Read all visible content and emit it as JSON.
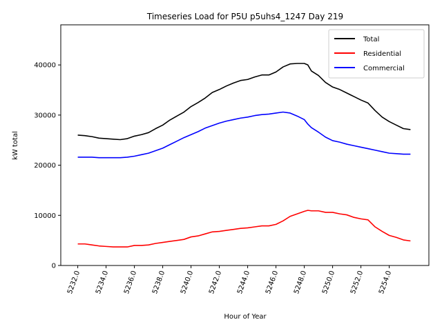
{
  "chart_data": {
    "type": "line",
    "title": "Timeseries Load for P5U p5uhs4_1247  Day 219",
    "xlabel": "Hour of Year",
    "ylabel": "kW total",
    "xlim": [
      5230.8,
      5256.8
    ],
    "ylim": [
      0,
      48000
    ],
    "xticks": [
      5232,
      5234,
      5236,
      5238,
      5240,
      5242,
      5244,
      5246,
      5248,
      5250,
      5252,
      5254
    ],
    "xtick_labels": [
      "5232.0",
      "5234.0",
      "5236.0",
      "5238.0",
      "5240.0",
      "5242.0",
      "5244.0",
      "5246.0",
      "5248.0",
      "5250.0",
      "5252.0",
      "5254.0"
    ],
    "yticks": [
      0,
      10000,
      20000,
      30000,
      40000
    ],
    "ytick_labels": [
      "0",
      "10000",
      "20000",
      "30000",
      "40000"
    ],
    "legend_position": "top-right",
    "x": [
      5232.0,
      5232.5,
      5233.0,
      5233.5,
      5234.0,
      5234.5,
      5235.0,
      5235.5,
      5236.0,
      5236.5,
      5237.0,
      5237.5,
      5238.0,
      5238.5,
      5239.0,
      5239.5,
      5240.0,
      5240.5,
      5241.0,
      5241.5,
      5242.0,
      5242.5,
      5243.0,
      5243.5,
      5244.0,
      5244.5,
      5245.0,
      5245.5,
      5246.0,
      5246.5,
      5247.0,
      5247.5,
      5248.0,
      5248.25,
      5248.5,
      5249.0,
      5249.5,
      5250.0,
      5250.5,
      5251.0,
      5251.5,
      5252.0,
      5252.5,
      5253.0,
      5253.5,
      5254.0,
      5254.5,
      5255.0,
      5255.5
    ],
    "series": [
      {
        "name": "Total",
        "color": "#000000",
        "values": [
          26000,
          25900,
          25700,
          25400,
          25300,
          25200,
          25100,
          25300,
          25800,
          26100,
          26500,
          27300,
          28000,
          29000,
          29800,
          30600,
          31700,
          32500,
          33400,
          34500,
          35100,
          35800,
          36400,
          36900,
          37100,
          37600,
          38000,
          38000,
          38600,
          39600,
          40200,
          40300,
          40300,
          40000,
          38800,
          37900,
          36500,
          35600,
          35100,
          34400,
          33700,
          33000,
          32400,
          30900,
          29600,
          28700,
          28000,
          27300,
          27100
        ]
      },
      {
        "name": "Residential",
        "color": "#ff0000",
        "values": [
          4300,
          4300,
          4100,
          3900,
          3800,
          3700,
          3700,
          3700,
          4000,
          4000,
          4100,
          4400,
          4600,
          4800,
          5000,
          5200,
          5700,
          5900,
          6300,
          6700,
          6800,
          7000,
          7200,
          7400,
          7500,
          7700,
          7900,
          7900,
          8200,
          8900,
          9800,
          10300,
          10800,
          11000,
          10900,
          10900,
          10600,
          10600,
          10300,
          10100,
          9600,
          9300,
          9100,
          7700,
          6800,
          6000,
          5600,
          5100,
          4900
        ]
      },
      {
        "name": "Commercial",
        "color": "#0000ff",
        "values": [
          21600,
          21600,
          21600,
          21500,
          21500,
          21500,
          21500,
          21600,
          21800,
          22100,
          22400,
          22900,
          23400,
          24100,
          24800,
          25500,
          26100,
          26700,
          27400,
          27900,
          28400,
          28800,
          29100,
          29400,
          29600,
          29900,
          30100,
          30200,
          30400,
          30600,
          30400,
          29800,
          29100,
          28200,
          27500,
          26600,
          25600,
          24900,
          24600,
          24200,
          23900,
          23600,
          23300,
          23000,
          22700,
          22400,
          22300,
          22200,
          22200
        ]
      }
    ]
  }
}
